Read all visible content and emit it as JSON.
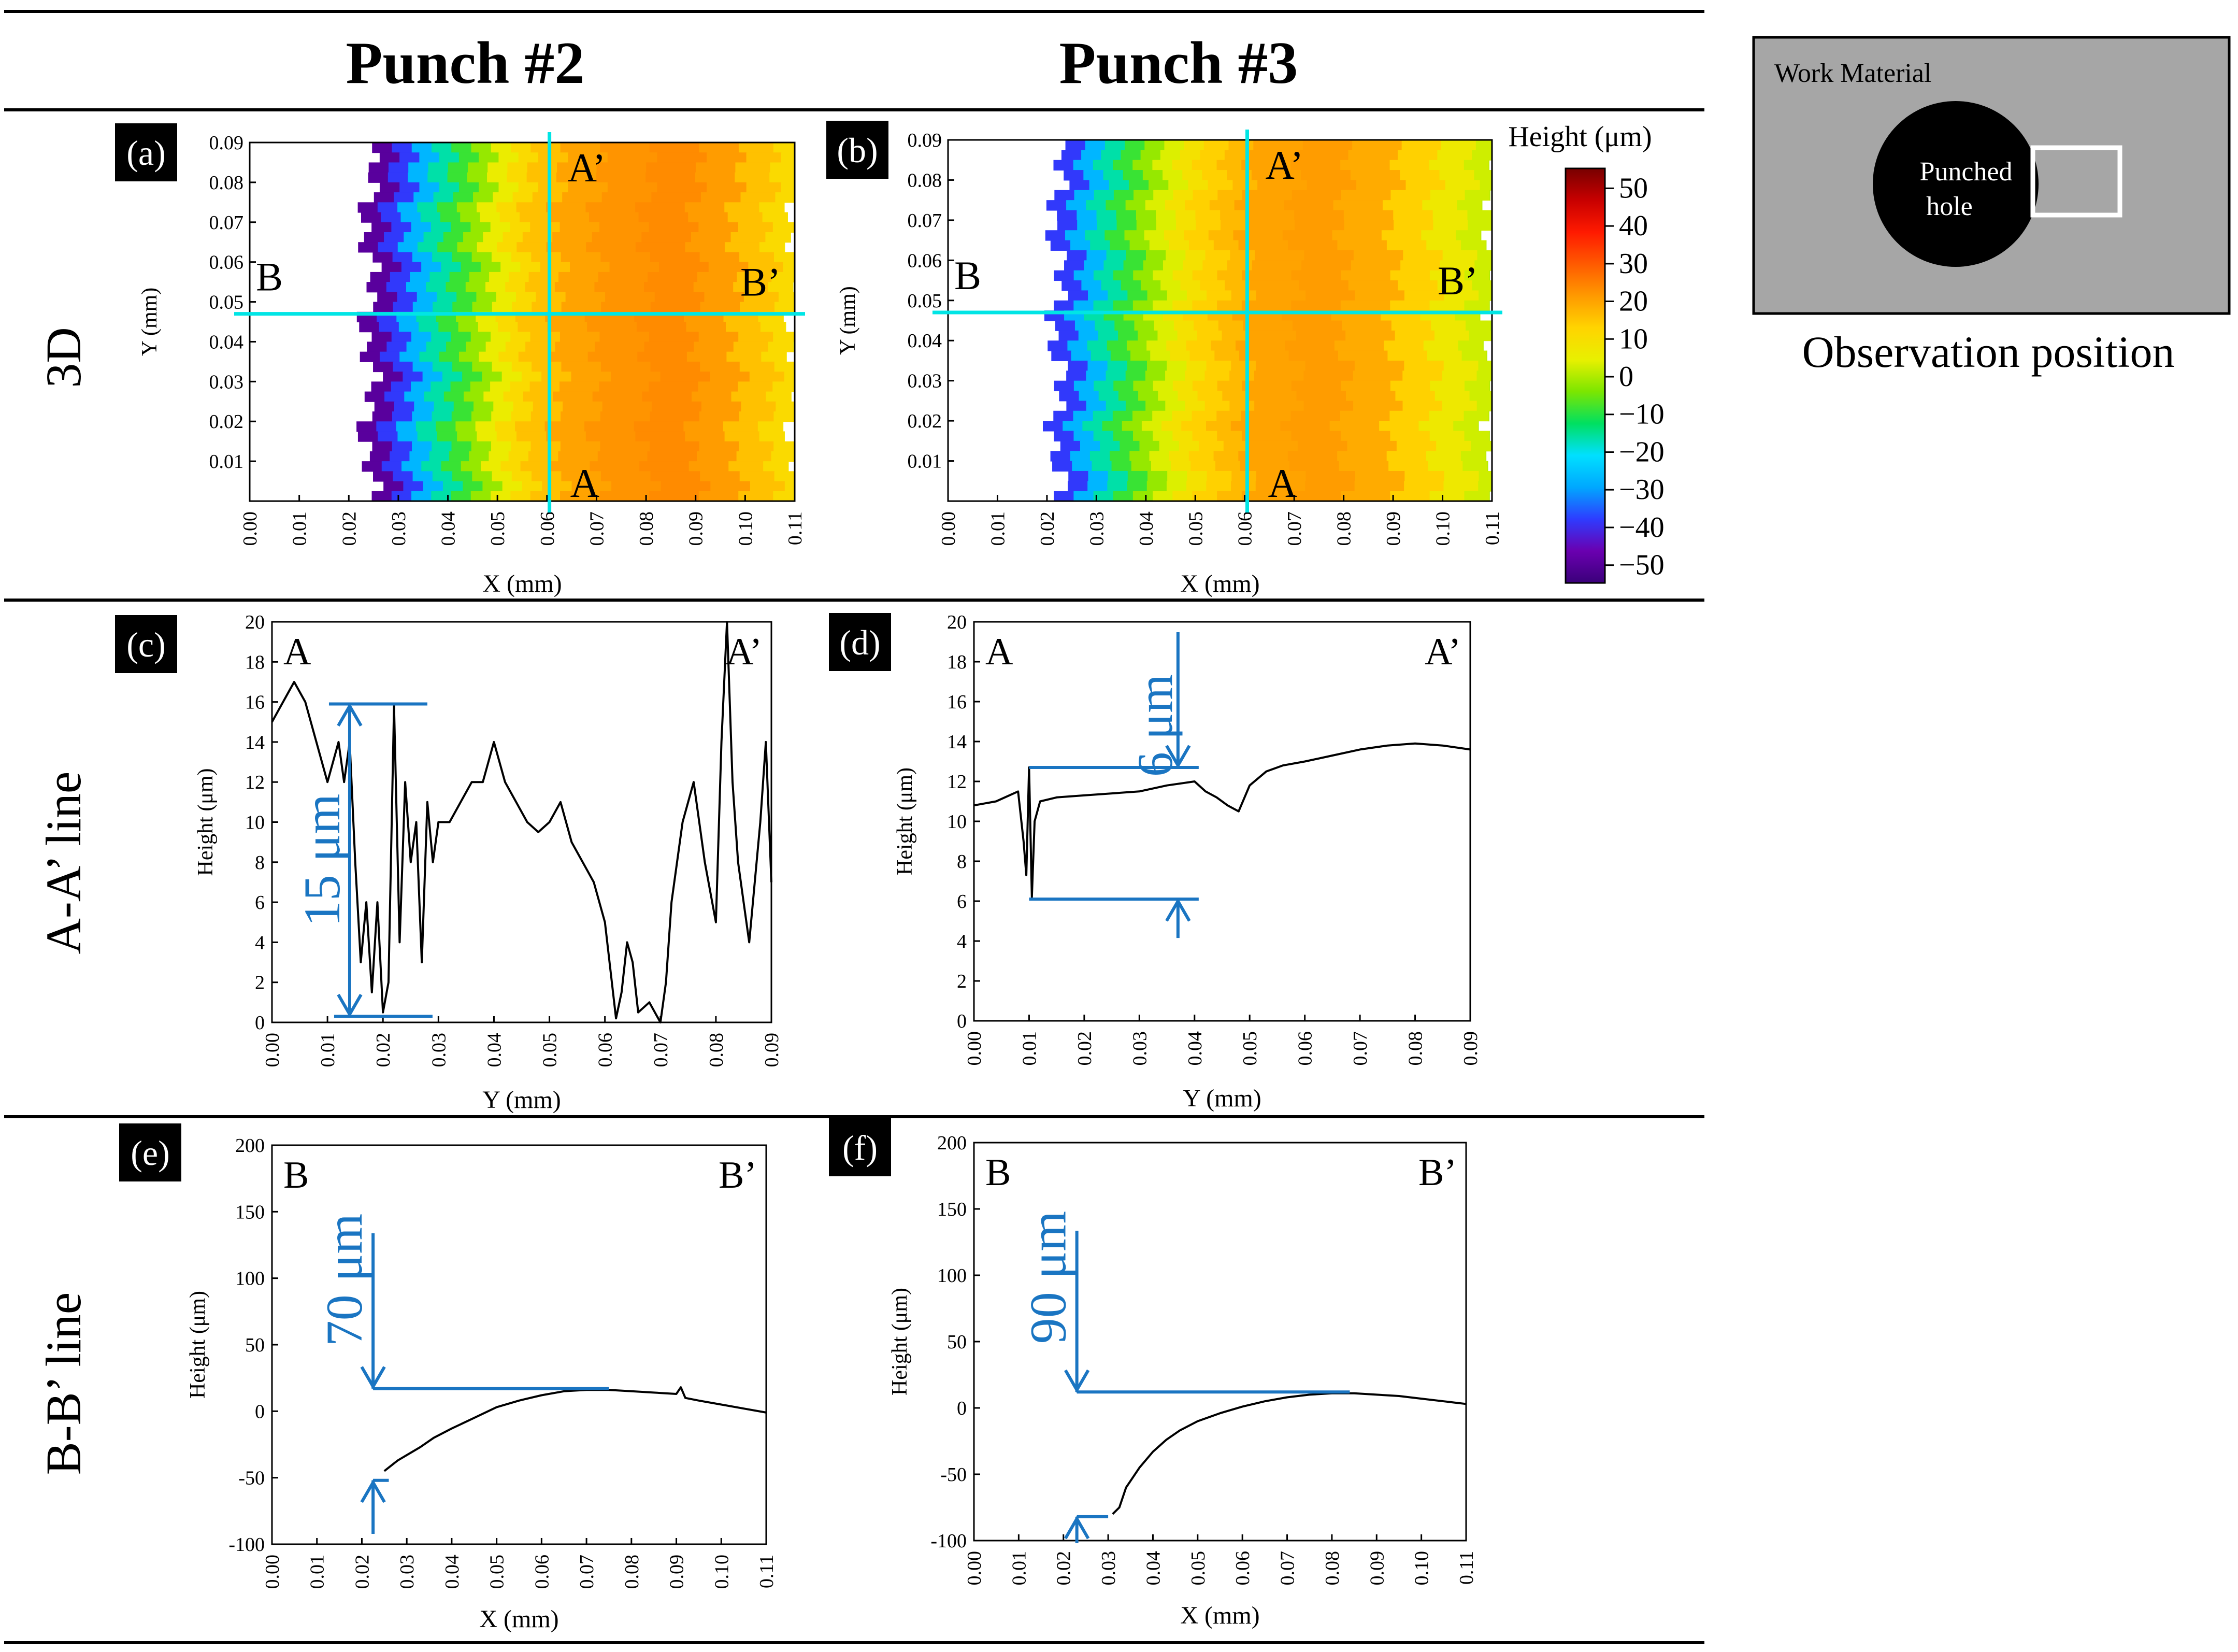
{
  "colors": {
    "rule": "#000000",
    "marker": "#00e5e5",
    "annot": "#1a75c2",
    "panel_tag_bg": "#000000",
    "panel_tag_fg": "#ffffff",
    "work_bg": "#a6a6a6",
    "hole": "#000000",
    "obs_box": "#ffffff",
    "colormap": [
      "#3a007a",
      "#6a00b0",
      "#2e3cff",
      "#00a8ff",
      "#00e0ff",
      "#00e060",
      "#7ce600",
      "#e8f000",
      "#ffd400",
      "#ff9a00",
      "#ff5a00",
      "#ff1a00",
      "#c80000",
      "#780000"
    ]
  },
  "column_titles": {
    "punch2": "Punch #2",
    "punch3": "Punch #3"
  },
  "row_titles": {
    "r3d": "3D",
    "raa": "A-A’ line",
    "rbb": "B-B’ line"
  },
  "observation": {
    "work_material": "Work Material",
    "hole_line1": "Punched",
    "hole_line2": "hole",
    "caption": "Observation position"
  },
  "colorbar": {
    "title": "Height (μm)",
    "ticks": [
      "50",
      "40",
      "30",
      "20",
      "10",
      "0",
      "−10",
      "−20",
      "−30",
      "−40",
      "−50"
    ]
  },
  "chart_data": [
    {
      "id": "a",
      "tag": "(a)",
      "type": "heatmap",
      "title": "Punch #2 3D surface",
      "xlabel": "X (mm)",
      "ylabel": "Y (mm)",
      "xlim": [
        0,
        0.11
      ],
      "ylim": [
        0,
        0.09
      ],
      "xticks": [
        "0.00",
        "0.01",
        "0.02",
        "0.03",
        "0.04",
        "0.05",
        "0.06",
        "0.07",
        "0.08",
        "0.09",
        "0.10",
        "0.11"
      ],
      "yticks": [
        "0.01",
        "0.02",
        "0.03",
        "0.04",
        "0.05",
        "0.06",
        "0.07",
        "0.08",
        "0.09"
      ],
      "zlim": [
        -50,
        50
      ],
      "height_bands": {
        "x_mm": [
          0.024,
          0.028,
          0.032,
          0.036,
          0.04,
          0.044,
          0.048,
          0.052,
          0.056,
          0.062,
          0.07,
          0.08,
          0.09,
          0.098,
          0.105,
          0.11
        ],
        "height_um": [
          -45,
          -35,
          -25,
          -15,
          -8,
          -2,
          5,
          10,
          14,
          18,
          20,
          21,
          19,
          14,
          10,
          7
        ]
      },
      "section_lines": {
        "A_x_mm": 0.0605,
        "B_y_mm": 0.047
      },
      "labels": {
        "A": "A",
        "A2": "A’",
        "B": "B",
        "B2": "B’"
      }
    },
    {
      "id": "b",
      "tag": "(b)",
      "type": "heatmap",
      "title": "Punch #3 3D surface",
      "xlabel": "X (mm)",
      "ylabel": "Y (mm)",
      "xlim": [
        0,
        0.11
      ],
      "ylim": [
        0,
        0.09
      ],
      "xticks": [
        "0.00",
        "0.01",
        "0.02",
        "0.03",
        "0.04",
        "0.05",
        "0.06",
        "0.07",
        "0.08",
        "0.09",
        "0.10",
        "0.11"
      ],
      "yticks": [
        "0.01",
        "0.02",
        "0.03",
        "0.04",
        "0.05",
        "0.06",
        "0.07",
        "0.08",
        "0.09"
      ],
      "zlim": [
        -50,
        50
      ],
      "height_bands": {
        "x_mm": [
          0.022,
          0.026,
          0.03,
          0.034,
          0.038,
          0.042,
          0.046,
          0.05,
          0.055,
          0.06,
          0.07,
          0.08,
          0.09,
          0.098,
          0.105,
          0.11
        ],
        "height_um": [
          -35,
          -25,
          -15,
          -8,
          -2,
          3,
          8,
          12,
          15,
          18,
          19,
          17,
          12,
          6,
          2,
          0
        ]
      },
      "section_lines": {
        "A_x_mm": 0.0605,
        "B_y_mm": 0.047
      },
      "labels": {
        "A": "A",
        "A2": "A’",
        "B": "B",
        "B2": "B’"
      }
    },
    {
      "id": "c",
      "tag": "(c)",
      "type": "line",
      "title": "Punch #2 A-A’ line",
      "xlabel": "Y (mm)",
      "ylabel": "Height (μm)",
      "xlim": [
        0,
        0.09
      ],
      "ylim": [
        0,
        20
      ],
      "xticks": [
        "0.00",
        "0.01",
        "0.02",
        "0.03",
        "0.04",
        "0.05",
        "0.06",
        "0.07",
        "0.08",
        "0.09"
      ],
      "yticks": [
        "0",
        "2",
        "4",
        "6",
        "8",
        "10",
        "12",
        "14",
        "16",
        "18",
        "20"
      ],
      "x": [
        0.0,
        0.002,
        0.004,
        0.006,
        0.008,
        0.01,
        0.012,
        0.013,
        0.014,
        0.015,
        0.016,
        0.017,
        0.018,
        0.019,
        0.02,
        0.021,
        0.022,
        0.023,
        0.024,
        0.025,
        0.026,
        0.027,
        0.028,
        0.029,
        0.03,
        0.032,
        0.034,
        0.036,
        0.038,
        0.04,
        0.042,
        0.044,
        0.046,
        0.048,
        0.05,
        0.052,
        0.054,
        0.056,
        0.058,
        0.06,
        0.062,
        0.063,
        0.064,
        0.065,
        0.066,
        0.068,
        0.07,
        0.071,
        0.072,
        0.074,
        0.076,
        0.078,
        0.08,
        0.081,
        0.082,
        0.083,
        0.084,
        0.085,
        0.086,
        0.088,
        0.089,
        0.09
      ],
      "values": [
        15,
        16,
        17,
        16,
        14,
        12,
        14,
        12,
        14,
        8,
        3,
        6,
        1.5,
        6,
        0.5,
        2,
        15.8,
        4,
        12,
        8,
        10,
        3,
        11,
        8,
        10,
        10,
        11,
        12,
        12,
        14,
        12,
        11,
        10,
        9.5,
        10,
        11,
        9,
        8,
        7,
        5,
        0.2,
        1.5,
        4,
        3,
        0.5,
        1,
        0,
        2,
        6,
        10,
        12,
        8,
        5,
        14,
        20,
        12,
        8,
        6,
        4,
        10,
        14,
        7
      ],
      "labels": {
        "A": "A",
        "A2": "A’"
      },
      "annotation": {
        "text": "15 μm",
        "x_mm": 0.014,
        "y_low": 0.3,
        "y_high": 15.9,
        "ref_end_x_mm": 0.028
      }
    },
    {
      "id": "d",
      "tag": "(d)",
      "type": "line",
      "title": "Punch #3 A-A’ line",
      "xlabel": "Y (mm)",
      "ylabel": "Height (μm)",
      "xlim": [
        0,
        0.09
      ],
      "ylim": [
        0,
        20
      ],
      "xticks": [
        "0.00",
        "0.01",
        "0.02",
        "0.03",
        "0.04",
        "0.05",
        "0.06",
        "0.07",
        "0.08",
        "0.09"
      ],
      "yticks": [
        "0",
        "2",
        "4",
        "6",
        "8",
        "10",
        "12",
        "14",
        "16",
        "18",
        "20"
      ],
      "x": [
        0.0,
        0.004,
        0.008,
        0.009,
        0.0095,
        0.01,
        0.0105,
        0.011,
        0.012,
        0.015,
        0.02,
        0.025,
        0.03,
        0.035,
        0.04,
        0.042,
        0.044,
        0.046,
        0.048,
        0.05,
        0.053,
        0.056,
        0.06,
        0.065,
        0.07,
        0.075,
        0.08,
        0.085,
        0.09
      ],
      "values": [
        10.8,
        11,
        11.5,
        9,
        7.3,
        12.7,
        6.2,
        10,
        11,
        11.2,
        11.3,
        11.4,
        11.5,
        11.8,
        12,
        11.5,
        11.2,
        10.8,
        10.5,
        11.8,
        12.5,
        12.8,
        13,
        13.3,
        13.6,
        13.8,
        13.9,
        13.8,
        13.6
      ],
      "labels": {
        "A": "A",
        "A2": "A’"
      },
      "annotation": {
        "text": "6 μm",
        "x_mm": 0.037,
        "y_low": 6.1,
        "y_high": 12.7,
        "ref_start_x_mm": 0.01
      }
    },
    {
      "id": "e",
      "tag": "(e)",
      "type": "line",
      "title": "Punch #2 B-B’ line",
      "xlabel": "X (mm)",
      "ylabel": "Height (μm)",
      "xlim": [
        0,
        0.11
      ],
      "ylim": [
        -100,
        200
      ],
      "xticks": [
        "0.00",
        "0.01",
        "0.02",
        "0.03",
        "0.04",
        "0.05",
        "0.06",
        "0.07",
        "0.08",
        "0.09",
        "0.10",
        "0.11"
      ],
      "yticks": [
        "-100",
        "-50",
        "0",
        "50",
        "100",
        "150",
        "200"
      ],
      "x": [
        0.025,
        0.028,
        0.03,
        0.033,
        0.036,
        0.04,
        0.045,
        0.05,
        0.055,
        0.06,
        0.065,
        0.07,
        0.075,
        0.08,
        0.085,
        0.09,
        0.091,
        0.092,
        0.095,
        0.1,
        0.105,
        0.11
      ],
      "values": [
        -45,
        -37,
        -33,
        -27,
        -20,
        -13,
        -5,
        3,
        8,
        12,
        15,
        16,
        16,
        15,
        14,
        13,
        18,
        10,
        8,
        5,
        2,
        -1
      ],
      "labels": {
        "B": "B",
        "B2": "B’"
      },
      "annotation": {
        "text": "70 μm",
        "x_mm": 0.0225,
        "y_low": -52,
        "y_high": 17,
        "ref_end_x_mm": 0.075
      }
    },
    {
      "id": "f",
      "tag": "(f)",
      "type": "line",
      "title": "Punch #3 B-B’ line",
      "xlabel": "X (mm)",
      "ylabel": "Height (μm)",
      "xlim": [
        0,
        0.11
      ],
      "ylim": [
        -100,
        200
      ],
      "xticks": [
        "0.00",
        "0.01",
        "0.02",
        "0.03",
        "0.04",
        "0.05",
        "0.06",
        "0.07",
        "0.08",
        "0.09",
        "0.10",
        "0.11"
      ],
      "yticks": [
        "-100",
        "-50",
        "0",
        "50",
        "100",
        "150",
        "200"
      ],
      "x": [
        0.031,
        0.0325,
        0.033,
        0.034,
        0.036,
        0.037,
        0.04,
        0.043,
        0.046,
        0.05,
        0.055,
        0.06,
        0.065,
        0.07,
        0.075,
        0.08,
        0.085,
        0.09,
        0.095,
        0.1,
        0.105,
        0.11
      ],
      "values": [
        -80,
        -75,
        -70,
        -60,
        -50,
        -45,
        -33,
        -24,
        -17,
        -10,
        -4,
        1,
        5,
        8,
        10,
        11,
        11,
        10,
        9,
        7,
        5,
        3
      ],
      "labels": {
        "B": "B",
        "B2": "B’"
      },
      "annotation": {
        "text": "90 μm",
        "x_mm": 0.023,
        "y_low": -82,
        "y_high": 12,
        "ref_end_x_mm": 0.084
      }
    }
  ]
}
